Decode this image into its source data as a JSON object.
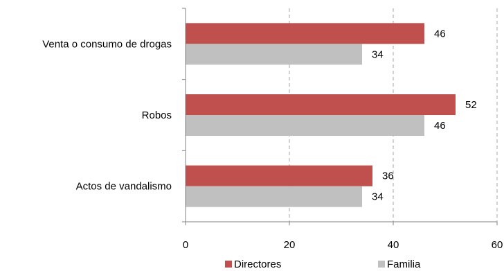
{
  "chart_data": {
    "type": "bar",
    "orientation": "horizontal",
    "categories": [
      "Venta o consumo de drogas",
      "Robos",
      "Actos de vandalismo"
    ],
    "series": [
      {
        "name": "Directores",
        "values": [
          46,
          52,
          36
        ],
        "color": "#c0504d"
      },
      {
        "name": "Familia",
        "values": [
          34,
          46,
          34
        ],
        "color": "#c0c0c0"
      }
    ],
    "xlim": [
      0,
      60
    ],
    "x_ticks": [
      0,
      20,
      40,
      60
    ],
    "grid": "vertical dashed",
    "legend_position": "bottom",
    "data_labels": true
  }
}
